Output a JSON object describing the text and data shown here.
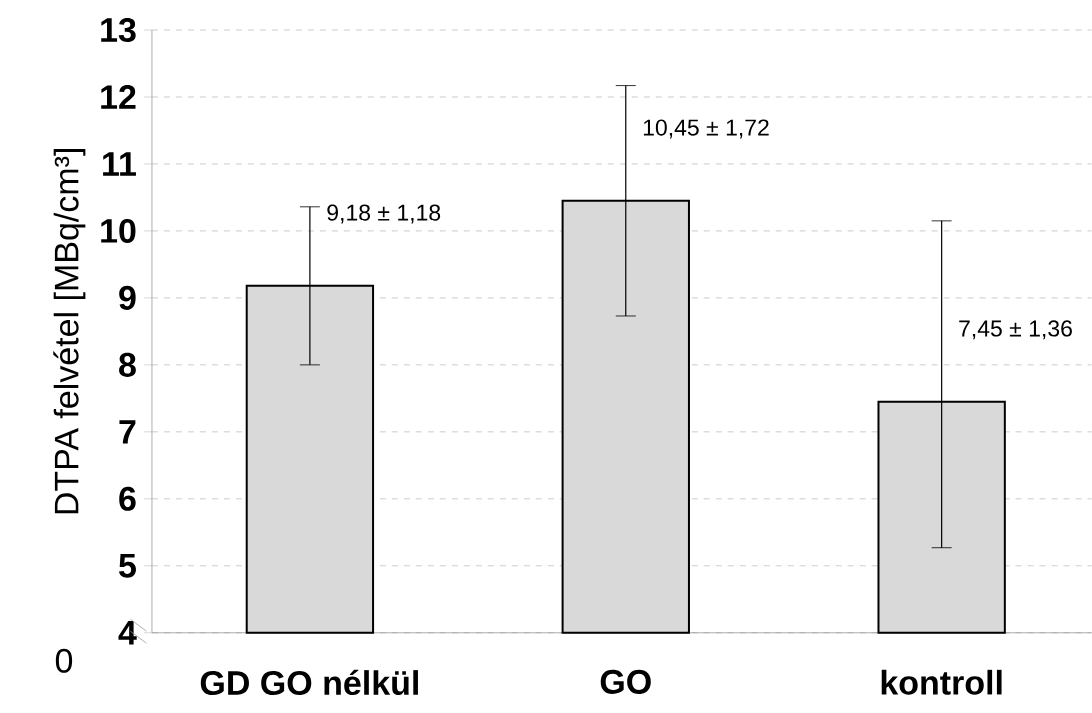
{
  "chart_data": {
    "type": "bar",
    "ylabel": "DTPA felvétel [MBq/cm³]",
    "categories": [
      "GD GO nélkül",
      "GO",
      "kontroll"
    ],
    "values": [
      9.18,
      10.45,
      7.45
    ],
    "errors": [
      1.18,
      1.72,
      [
        5.27,
        10.15
      ]
    ],
    "value_labels": [
      "9,18 ± 1,18",
      "10,45 ± 1,72",
      "7,45 ± 1,36"
    ],
    "color": "#d9d9d9",
    "ylim": [
      4,
      13
    ],
    "yticks": [
      4,
      5,
      6,
      7,
      8,
      9,
      10,
      11,
      12,
      13
    ],
    "grid": "y",
    "annotations": [
      "0"
    ]
  }
}
